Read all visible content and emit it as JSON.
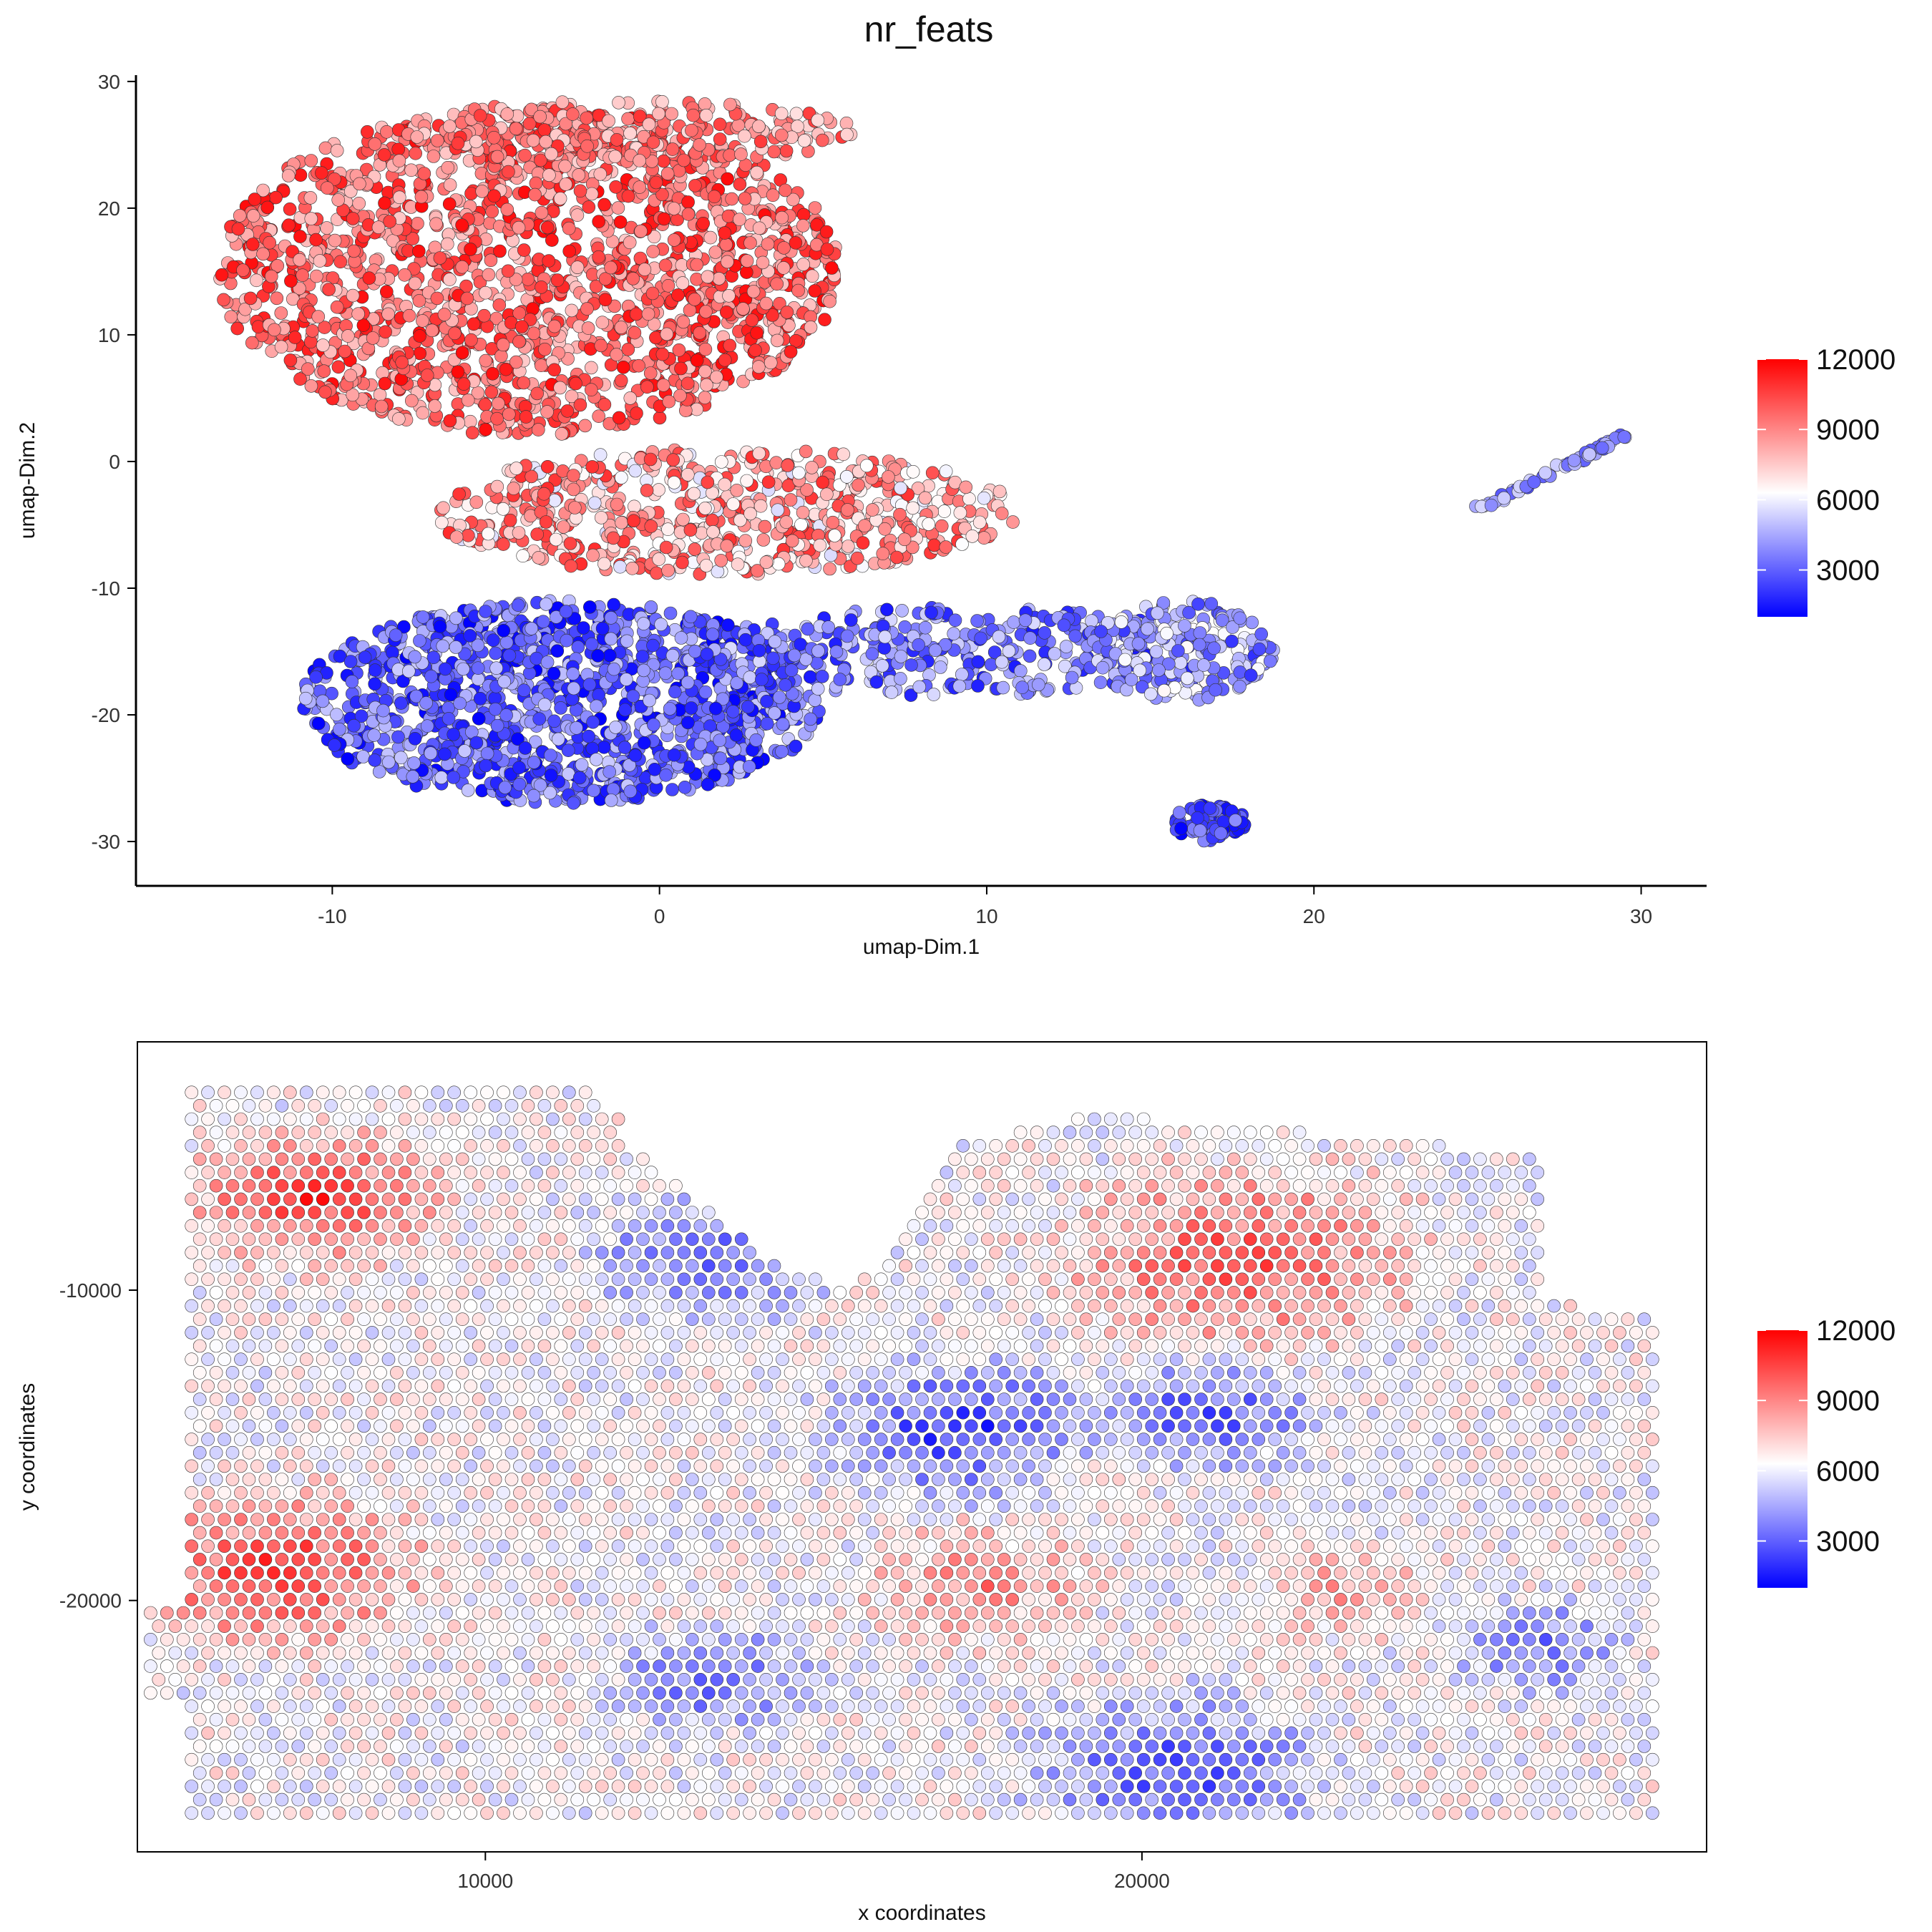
{
  "figure": {
    "title": "nr_feats"
  },
  "colors": {
    "low": "#0000ff",
    "mid": "#ffffff",
    "high": "#ff0000",
    "point_outline": "#333333"
  },
  "chart_data": [
    {
      "type": "scatter",
      "title": "nr_feats",
      "xlabel": "umap-Dim.1",
      "ylabel": "umap-Dim.2",
      "xlim": [
        -16,
        32
      ],
      "ylim": [
        -33.5,
        30.5
      ],
      "xticks": [
        -10,
        0,
        10,
        20,
        30
      ],
      "xtick_labels": [
        "-10",
        "0",
        "10",
        "20",
        "30"
      ],
      "yticks": [
        30,
        20,
        10,
        0,
        -10,
        -20,
        -30
      ],
      "ytick_labels": [
        "30",
        "20",
        "10",
        "0",
        "-10",
        "-20",
        "-30"
      ],
      "color_scale": {
        "feature": "nr_feats",
        "min": 1000,
        "mid": 6300,
        "max": 12000,
        "ticks": [
          12000,
          9000,
          6000,
          3000
        ],
        "tick_labels": [
          "12000",
          "9000",
          "6000",
          "3000"
        ],
        "colors": [
          "#0000ff",
          "#ffffff",
          "#ff0000"
        ]
      },
      "grid": false,
      "legend": "right",
      "regions": [
        {
          "desc": "upper cluster",
          "cx": -4,
          "cy": 15,
          "rx": 9.5,
          "ry": 13,
          "vmin": 7500,
          "vmax": 11800,
          "n": 1700
        },
        {
          "desc": "upper band",
          "cx": -1,
          "cy": 26,
          "rx": 7,
          "ry": 2.5,
          "vmin": 7000,
          "vmax": 11000,
          "n": 250
        },
        {
          "desc": "middle band",
          "cx": 2,
          "cy": -4,
          "rx": 9,
          "ry": 5,
          "vmin": 5500,
          "vmax": 11000,
          "n": 650
        },
        {
          "desc": "lower cluster",
          "cx": -3,
          "cy": -19,
          "rx": 8,
          "ry": 8,
          "vmin": 1000,
          "vmax": 5200,
          "n": 1250
        },
        {
          "desc": "lower arm",
          "cx": 9,
          "cy": -15,
          "rx": 8,
          "ry": 3.5,
          "vmin": 1500,
          "vmax": 5500,
          "n": 350
        },
        {
          "desc": "right group",
          "cx": 16,
          "cy": -15,
          "rx": 2.8,
          "ry": 4,
          "vmin": 2000,
          "vmax": 6500,
          "n": 200
        },
        {
          "desc": "bottom group",
          "cx": 16.8,
          "cy": -28.5,
          "rx": 1.1,
          "ry": 1.5,
          "vmin": 1000,
          "vmax": 4000,
          "n": 90
        },
        {
          "desc": "strand",
          "x0": 25,
          "y0": -3.8,
          "x1": 29.6,
          "y1": 2.2,
          "vmin": 2500,
          "vmax": 5500,
          "n": 60
        }
      ]
    },
    {
      "type": "scatter",
      "title": "",
      "xlabel": "x coordinates",
      "ylabel": "y coordinates",
      "xlim": [
        4700,
        28600
      ],
      "ylim": [
        -28100,
        -2000
      ],
      "xticks": [
        10000,
        20000
      ],
      "xtick_labels": [
        "10000",
        "20000"
      ],
      "yticks": [
        -10000,
        -20000
      ],
      "ytick_labels": [
        "-10000",
        "-20000"
      ],
      "color_scale": {
        "feature": "nr_feats",
        "min": 1000,
        "mid": 6300,
        "max": 12000,
        "ticks": [
          12000,
          9000,
          6000,
          3000
        ],
        "tick_labels": [
          "12000",
          "9000",
          "6000",
          "3000"
        ],
        "colors": [
          "#0000ff",
          "#ffffff",
          "#ff0000"
        ]
      },
      "grid": false,
      "legend": "right",
      "spot_grid": {
        "x_step": 250,
        "y_step": 430,
        "x_start": 5560,
        "y_top": -3200
      },
      "hot_zones": [
        {
          "x": 7400,
          "y": -7000,
          "r": 2600,
          "v": 11000
        },
        {
          "x": 6800,
          "y": -19000,
          "r": 3000,
          "v": 11000
        },
        {
          "x": 21500,
          "y": -9000,
          "r": 3600,
          "v": 10200
        },
        {
          "x": 17500,
          "y": -19500,
          "r": 2200,
          "v": 9200
        },
        {
          "x": 23200,
          "y": -19800,
          "r": 1800,
          "v": 8600
        }
      ],
      "cold_zones": [
        {
          "x": 13500,
          "y": -9000,
          "r": 2400,
          "v": 2500
        },
        {
          "x": 17200,
          "y": -14500,
          "r": 2600,
          "v": 1800
        },
        {
          "x": 21000,
          "y": -14000,
          "r": 2200,
          "v": 2500
        },
        {
          "x": 13500,
          "y": -22500,
          "r": 2000,
          "v": 2800
        },
        {
          "x": 20500,
          "y": -25500,
          "r": 3000,
          "v": 2500
        },
        {
          "x": 26000,
          "y": -21500,
          "r": 1800,
          "v": 3000
        }
      ]
    }
  ]
}
